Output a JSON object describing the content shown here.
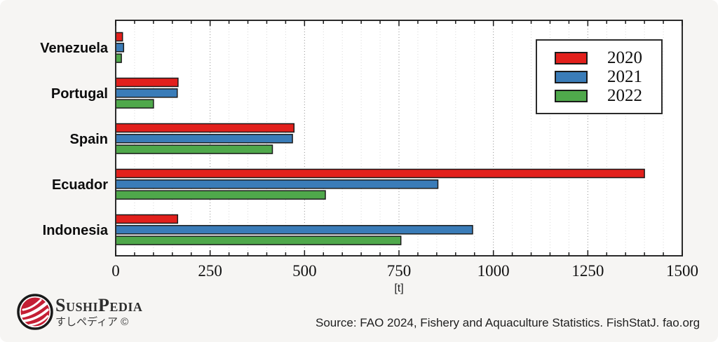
{
  "chart_data": {
    "type": "bar",
    "orientation": "horizontal",
    "title": "",
    "xlabel": "[t]",
    "ylabel": "",
    "xlim": [
      0,
      1500
    ],
    "x_major_ticks": [
      0,
      250,
      500,
      750,
      1000,
      1250,
      1500
    ],
    "x_tick_labels": [
      "0",
      "250",
      "500",
      "750",
      "1000",
      "1250",
      "1500"
    ],
    "x_minor_step": 50,
    "grid": "dotted-vertical",
    "legend_position": "top-right",
    "categories": [
      "Venezuela",
      "Portugal",
      "Spain",
      "Ecuador",
      "Indonesia"
    ],
    "series": [
      {
        "name": "2020",
        "color": "#e2201c",
        "values": [
          18,
          165,
          472,
          1400,
          164
        ]
      },
      {
        "name": "2021",
        "color": "#3a7cb8",
        "values": [
          21,
          163,
          468,
          853,
          945
        ]
      },
      {
        "name": "2022",
        "color": "#4fa84b",
        "values": [
          15,
          100,
          415,
          555,
          755
        ]
      }
    ]
  },
  "footer": {
    "source": "Source: FAO 2024, Fishery and Aquaculture Statistics. FishStatJ. fao.org"
  },
  "branding": {
    "name": "SushiPedia",
    "subtitle": "すしペディア ©"
  },
  "colors": {
    "background": "#f6f5f3",
    "plot_background": "#ffffff",
    "axis": "#2b2b2b",
    "bar_outline": "#1b1b1b",
    "grid_minor": "#d9d9d9",
    "grid_major": "#8f8f8f",
    "tick": "#1a1a1a",
    "logo_red": "#c41e34",
    "logo_ring": "#1a1a1a"
  }
}
